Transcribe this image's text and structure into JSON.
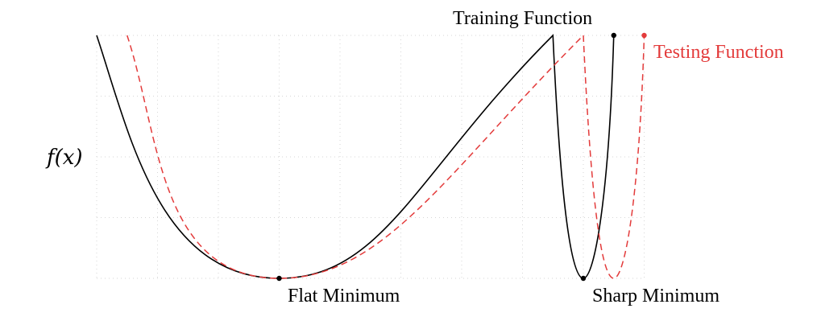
{
  "chart_data": {
    "type": "line",
    "ylabel": "f(x)",
    "grid": true,
    "series": [
      {
        "name": "Training Function",
        "color": "#000000",
        "dash": "solid",
        "points": [
          [
            0,
            1
          ],
          [
            1.2,
            0.42
          ],
          [
            3,
            0
          ],
          [
            5.2,
            0.32
          ],
          [
            7.5,
            1
          ],
          [
            7.6,
            0.55
          ],
          [
            8,
            0
          ],
          [
            8.4,
            0.55
          ],
          [
            8.5,
            1
          ]
        ]
      },
      {
        "name": "Testing Function",
        "color": "#e33b3b",
        "dash": "dashed",
        "points": [
          [
            0.5,
            1
          ],
          [
            1.7,
            0.42
          ],
          [
            3,
            0
          ],
          [
            5.7,
            0.32
          ],
          [
            8,
            1
          ],
          [
            8.1,
            0.55
          ],
          [
            8.5,
            0
          ],
          [
            8.9,
            0.55
          ],
          [
            9,
            1
          ]
        ]
      }
    ],
    "annotations": [
      {
        "label": "Flat Minimum",
        "x": 3,
        "y": 0
      },
      {
        "label": "Sharp Minimum",
        "x": 8,
        "y": 0
      }
    ]
  },
  "labels": {
    "ylabel": "f(x)",
    "training": "Training Function",
    "testing": "Testing Function",
    "flat": "Flat Minimum",
    "sharp": "Sharp Minimum"
  }
}
